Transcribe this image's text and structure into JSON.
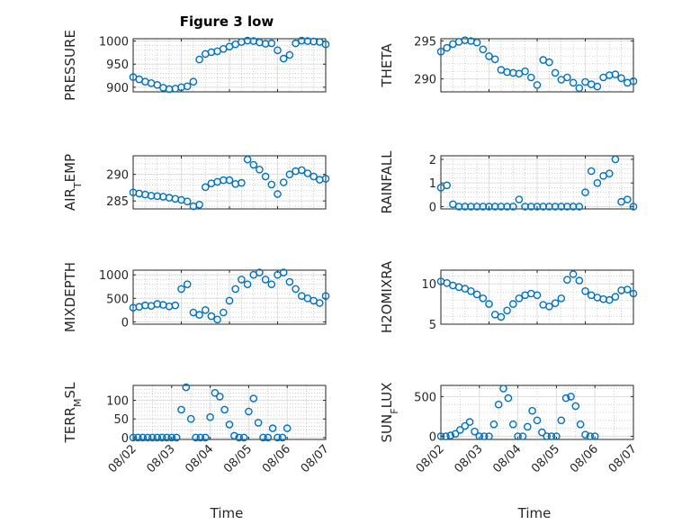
{
  "figure": {
    "title": "Figure 3 low",
    "xlabel": "Time",
    "marker_color": "#0072BD"
  },
  "chart_data": [
    {
      "type": "scatter",
      "ylabel": "PRESSURE",
      "yticks": [
        900,
        950,
        1000
      ],
      "ylim": [
        890,
        1005
      ],
      "xlim": [
        "08/02",
        "08/06"
      ],
      "show_xticklabels": false,
      "x": [
        "08/02 00:00",
        "08/02 03:00",
        "08/02 06:00",
        "08/02 09:00",
        "08/02 12:00",
        "08/02 15:00",
        "08/02 18:00",
        "08/02 21:00",
        "08/03 00:00",
        "08/03 03:00",
        "08/03 06:00",
        "08/03 09:00",
        "08/03 12:00",
        "08/03 15:00",
        "08/03 18:00",
        "08/03 21:00",
        "08/04 00:00",
        "08/04 03:00",
        "08/04 06:00",
        "08/04 09:00",
        "08/04 12:00",
        "08/04 15:00",
        "08/04 18:00",
        "08/04 21:00",
        "08/05 00:00",
        "08/05 03:00",
        "08/05 06:00",
        "08/05 09:00",
        "08/05 12:00",
        "08/05 15:00",
        "08/05 18:00",
        "08/05 21:00",
        "08/06 00:00"
      ],
      "y": [
        922,
        917,
        912,
        909,
        905,
        899,
        896,
        897,
        900,
        902,
        912,
        960,
        972,
        976,
        978,
        983,
        988,
        993,
        998,
        1001,
        1000,
        997,
        994,
        995,
        980,
        962,
        970,
        995,
        1001,
        1000,
        999,
        998,
        993
      ]
    },
    {
      "type": "scatter",
      "ylabel": "THETA",
      "yticks": [
        290,
        295
      ],
      "ylim": [
        288.3,
        295.3
      ],
      "xlim": [
        "08/02",
        "08/06"
      ],
      "show_xticklabels": false,
      "x": [
        "08/02 00:00",
        "08/02 03:00",
        "08/02 06:00",
        "08/02 09:00",
        "08/02 12:00",
        "08/02 15:00",
        "08/02 18:00",
        "08/02 21:00",
        "08/03 00:00",
        "08/03 03:00",
        "08/03 06:00",
        "08/03 09:00",
        "08/03 12:00",
        "08/03 15:00",
        "08/03 18:00",
        "08/03 21:00",
        "08/04 00:00",
        "08/04 03:00",
        "08/04 06:00",
        "08/04 09:00",
        "08/04 12:00",
        "08/04 15:00",
        "08/04 18:00",
        "08/04 21:00",
        "08/05 00:00",
        "08/05 03:00",
        "08/05 06:00",
        "08/05 09:00",
        "08/05 12:00",
        "08/05 15:00",
        "08/05 18:00",
        "08/05 21:00",
        "08/06 00:00"
      ],
      "y": [
        293.6,
        294.1,
        294.6,
        294.9,
        295.1,
        295.0,
        294.8,
        293.9,
        293.0,
        292.6,
        291.2,
        290.9,
        290.8,
        290.7,
        291.0,
        290.2,
        289.2,
        292.5,
        292.2,
        290.8,
        289.9,
        290.2,
        289.5,
        288.8,
        289.6,
        289.3,
        289.0,
        290.2,
        290.5,
        290.6,
        290.1,
        289.5,
        289.7
      ]
    },
    {
      "type": "scatter",
      "ylabel": "AIR_TEMP",
      "yticks": [
        285,
        290
      ],
      "ylim": [
        283.5,
        293.5
      ],
      "xlim": [
        "08/02",
        "08/06"
      ],
      "show_xticklabels": false,
      "x": [
        "08/02 00:00",
        "08/02 03:00",
        "08/02 06:00",
        "08/02 09:00",
        "08/02 12:00",
        "08/02 15:00",
        "08/02 18:00",
        "08/02 21:00",
        "08/03 00:00",
        "08/03 03:00",
        "08/03 06:00",
        "08/03 09:00",
        "08/03 12:00",
        "08/03 15:00",
        "08/03 18:00",
        "08/03 21:00",
        "08/04 00:00",
        "08/04 03:00",
        "08/04 06:00",
        "08/04 09:00",
        "08/04 12:00",
        "08/04 15:00",
        "08/04 18:00",
        "08/04 21:00",
        "08/05 00:00",
        "08/05 03:00",
        "08/05 06:00",
        "08/05 09:00",
        "08/05 12:00",
        "08/05 15:00",
        "08/05 18:00",
        "08/05 21:00",
        "08/06 00:00"
      ],
      "y": [
        286.6,
        286.4,
        286.2,
        286.0,
        285.9,
        285.8,
        285.6,
        285.4,
        285.2,
        284.9,
        284.0,
        284.3,
        287.6,
        288.3,
        288.6,
        288.9,
        288.9,
        288.2,
        288.4,
        292.8,
        291.8,
        290.9,
        289.6,
        288.1,
        286.3,
        288.5,
        290.0,
        290.6,
        290.8,
        290.2,
        289.6,
        289.0,
        289.2
      ]
    },
    {
      "type": "scatter",
      "ylabel": "RAINFALL",
      "yticks": [
        0,
        1,
        2
      ],
      "ylim": [
        -0.1,
        2.15
      ],
      "xlim": [
        "08/02",
        "08/06"
      ],
      "show_xticklabels": false,
      "x": [
        "08/02 00:00",
        "08/02 03:00",
        "08/02 06:00",
        "08/02 09:00",
        "08/02 12:00",
        "08/02 15:00",
        "08/02 18:00",
        "08/02 21:00",
        "08/03 00:00",
        "08/03 03:00",
        "08/03 06:00",
        "08/03 09:00",
        "08/03 12:00",
        "08/03 15:00",
        "08/03 18:00",
        "08/03 21:00",
        "08/04 00:00",
        "08/04 03:00",
        "08/04 06:00",
        "08/04 09:00",
        "08/04 12:00",
        "08/04 15:00",
        "08/04 18:00",
        "08/04 21:00",
        "08/05 00:00",
        "08/05 03:00",
        "08/05 06:00",
        "08/05 09:00",
        "08/05 12:00",
        "08/05 15:00",
        "08/05 18:00",
        "08/05 21:00",
        "08/06 00:00"
      ],
      "y": [
        0.8,
        0.9,
        0.1,
        0.0,
        0.0,
        0.0,
        0.0,
        0.0,
        0.0,
        0.0,
        0.0,
        0.0,
        0.0,
        0.3,
        0.0,
        0.0,
        0.0,
        0.0,
        0.0,
        0.0,
        0.0,
        0.0,
        0.0,
        0.0,
        0.6,
        1.5,
        1.0,
        1.3,
        1.4,
        2.0,
        0.2,
        0.3,
        0.0
      ]
    },
    {
      "type": "scatter",
      "ylabel": "MIXDEPTH",
      "yticks": [
        0,
        500,
        1000
      ],
      "ylim": [
        -50,
        1100
      ],
      "xlim": [
        "08/02",
        "08/06"
      ],
      "show_xticklabels": false,
      "x": [
        "08/02 00:00",
        "08/02 03:00",
        "08/02 06:00",
        "08/02 09:00",
        "08/02 12:00",
        "08/02 15:00",
        "08/02 18:00",
        "08/02 21:00",
        "08/03 00:00",
        "08/03 03:00",
        "08/03 06:00",
        "08/03 09:00",
        "08/03 12:00",
        "08/03 15:00",
        "08/03 18:00",
        "08/03 21:00",
        "08/04 00:00",
        "08/04 03:00",
        "08/04 06:00",
        "08/04 09:00",
        "08/04 12:00",
        "08/04 15:00",
        "08/04 18:00",
        "08/04 21:00",
        "08/05 00:00",
        "08/05 03:00",
        "08/05 06:00",
        "08/05 09:00",
        "08/05 12:00",
        "08/05 15:00",
        "08/05 18:00",
        "08/05 21:00",
        "08/06 00:00"
      ],
      "y": [
        300,
        320,
        350,
        340,
        380,
        360,
        330,
        350,
        700,
        800,
        200,
        150,
        250,
        120,
        50,
        200,
        450,
        700,
        900,
        800,
        1000,
        1050,
        900,
        800,
        1000,
        1050,
        850,
        700,
        550,
        500,
        450,
        400,
        550
      ]
    },
    {
      "type": "scatter",
      "ylabel": "H2OMIXRA",
      "yticks": [
        5,
        10
      ],
      "ylim": [
        5,
        11.7
      ],
      "xlim": [
        "08/02",
        "08/06"
      ],
      "show_xticklabels": false,
      "x": [
        "08/02 00:00",
        "08/02 03:00",
        "08/02 06:00",
        "08/02 09:00",
        "08/02 12:00",
        "08/02 15:00",
        "08/02 18:00",
        "08/02 21:00",
        "08/03 00:00",
        "08/03 03:00",
        "08/03 06:00",
        "08/03 09:00",
        "08/03 12:00",
        "08/03 15:00",
        "08/03 18:00",
        "08/03 21:00",
        "08/04 00:00",
        "08/04 03:00",
        "08/04 06:00",
        "08/04 09:00",
        "08/04 12:00",
        "08/04 15:00",
        "08/04 18:00",
        "08/04 21:00",
        "08/05 00:00",
        "08/05 03:00",
        "08/05 06:00",
        "08/05 09:00",
        "08/05 12:00",
        "08/05 15:00",
        "08/05 18:00",
        "08/05 21:00",
        "08/06 00:00"
      ],
      "y": [
        10.3,
        10.1,
        9.8,
        9.6,
        9.4,
        9.1,
        8.7,
        8.2,
        7.5,
        6.2,
        5.9,
        6.7,
        7.5,
        8.2,
        8.6,
        8.8,
        8.6,
        7.4,
        7.2,
        7.6,
        8.2,
        10.5,
        11.2,
        10.4,
        9.1,
        8.6,
        8.3,
        8.1,
        8.0,
        8.4,
        9.2,
        9.3,
        8.8
      ]
    },
    {
      "type": "scatter",
      "ylabel": "TERR_MSL",
      "yticks": [
        0,
        50,
        100
      ],
      "ylim": [
        -5,
        140
      ],
      "xlim": [
        "08/02",
        "08/07"
      ],
      "xticks": [
        "08/02",
        "08/03",
        "08/04",
        "08/05",
        "08/06",
        "08/07"
      ],
      "x": [
        "08/02 00:00",
        "08/02 03:00",
        "08/02 06:00",
        "08/02 09:00",
        "08/02 12:00",
        "08/02 15:00",
        "08/02 18:00",
        "08/02 21:00",
        "08/03 00:00",
        "08/03 03:00",
        "08/03 06:00",
        "08/03 09:00",
        "08/03 12:00",
        "08/03 15:00",
        "08/03 18:00",
        "08/03 21:00",
        "08/04 00:00",
        "08/04 03:00",
        "08/04 06:00",
        "08/04 09:00",
        "08/04 12:00",
        "08/04 15:00",
        "08/04 18:00",
        "08/04 21:00",
        "08/05 00:00",
        "08/05 03:00",
        "08/05 06:00",
        "08/05 09:00",
        "08/05 12:00",
        "08/05 15:00",
        "08/05 18:00",
        "08/05 21:00",
        "08/06 00:00"
      ],
      "y": [
        0,
        0,
        0,
        0,
        0,
        0,
        0,
        0,
        0,
        0,
        75,
        135,
        50,
        0,
        0,
        0,
        55,
        120,
        110,
        75,
        35,
        5,
        0,
        0,
        70,
        105,
        40,
        0,
        0,
        25,
        0,
        0,
        25
      ]
    },
    {
      "type": "scatter",
      "ylabel": "SUN_FLUX",
      "yticks": [
        0,
        500
      ],
      "ylim": [
        -40,
        640
      ],
      "xlim": [
        "08/02",
        "08/07"
      ],
      "xticks": [
        "08/02",
        "08/03",
        "08/04",
        "08/05",
        "08/06",
        "08/07"
      ],
      "x": [
        "08/02 00:00",
        "08/02 03:00",
        "08/02 06:00",
        "08/02 09:00",
        "08/02 12:00",
        "08/02 15:00",
        "08/02 18:00",
        "08/02 21:00",
        "08/03 00:00",
        "08/03 03:00",
        "08/03 06:00",
        "08/03 09:00",
        "08/03 12:00",
        "08/03 15:00",
        "08/03 18:00",
        "08/03 21:00",
        "08/04 00:00",
        "08/04 03:00",
        "08/04 06:00",
        "08/04 09:00",
        "08/04 12:00",
        "08/04 15:00",
        "08/04 18:00",
        "08/04 21:00",
        "08/05 00:00",
        "08/05 03:00",
        "08/05 06:00",
        "08/05 09:00",
        "08/05 12:00",
        "08/05 15:00",
        "08/05 18:00",
        "08/05 21:00",
        "08/06 00:00"
      ],
      "y": [
        0,
        0,
        10,
        30,
        80,
        130,
        180,
        60,
        0,
        0,
        0,
        150,
        400,
        600,
        480,
        150,
        0,
        0,
        120,
        320,
        200,
        50,
        0,
        0,
        0,
        200,
        480,
        500,
        380,
        150,
        20,
        0,
        0
      ]
    }
  ]
}
